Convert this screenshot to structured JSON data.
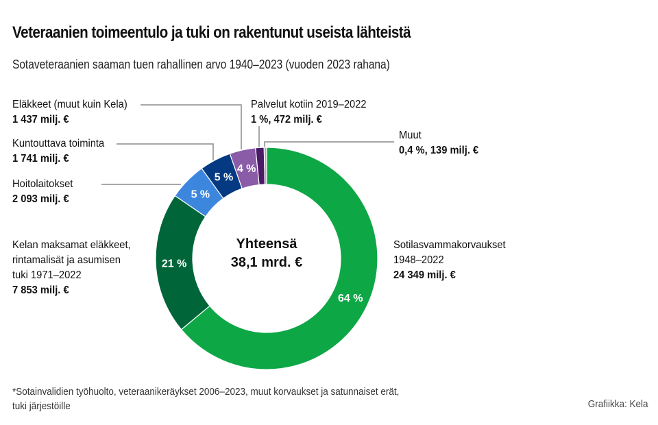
{
  "header": {
    "title": "Veteraanien toimeentulo ja tuki on rakentunut useista lähteistä",
    "subtitle": "Sotaveteraanien saaman tuen rahallinen arvo 1940–2023 (vuoden 2023 rahana)"
  },
  "chart_data": {
    "type": "pie",
    "variant": "donut",
    "title": "Veteraanien toimeentulo ja tuki on rakentunut useista lähteistä",
    "subtitle": "Sotaveteraanien saaman tuen rahallinen arvo 1940–2023 (vuoden 2023 rahana)",
    "unit": "milj. €",
    "center_label": {
      "line1": "Yhteensä",
      "line2": "38,1 mrd. €"
    },
    "start": "top",
    "direction": "clockwise",
    "slices": [
      {
        "key": "sotilasvamma",
        "name_lines": [
          "Sotilasvammakorvaukset",
          "1948–2022"
        ],
        "value": 24349,
        "value_label": "24 349 milj. €",
        "pct_label": "64 %",
        "color": "#0EA746"
      },
      {
        "key": "kela",
        "name_lines": [
          "Kelan maksamat eläkkeet,",
          "rintamalisät ja asumisen",
          "tuki 1971–2022"
        ],
        "value": 7853,
        "value_label": "7 853 milj. €",
        "pct_label": "21 %",
        "color": "#00663A"
      },
      {
        "key": "hoitolaitokset",
        "name_lines": [
          "Hoitolaitokset"
        ],
        "value": 2093,
        "value_label": "2 093 milj. €",
        "pct_label": "5 %",
        "color": "#3D86DE"
      },
      {
        "key": "kuntouttava",
        "name_lines": [
          "Kuntouttava toiminta"
        ],
        "value": 1741,
        "value_label": "1 741 milj. €",
        "pct_label": "5 %",
        "color": "#053A82"
      },
      {
        "key": "elakkeet",
        "name_lines": [
          "Eläkkeet (muut kuin Kela)"
        ],
        "value": 1437,
        "value_label": "1 437 milj. €",
        "pct_label": "4 %",
        "color": "#8A5CA8"
      },
      {
        "key": "palvelut",
        "name_lines": [
          "Palvelut kotiin 2019–2022"
        ],
        "value": 472,
        "value_label": "1 %, 472 milj. €",
        "pct_label": "",
        "color": "#4A1A66"
      },
      {
        "key": "muut",
        "name_lines": [
          "Muut"
        ],
        "value": 139,
        "value_label": "0,4 %, 139 milj. €",
        "pct_label": "",
        "color": "#A8A8A8"
      }
    ],
    "leader_line_color": "#8a8a8a",
    "separator_color": "#ffffff"
  },
  "footnote": {
    "lines": [
      "*Sotainvalidien työhuolto, veteraanikeräykset 2006–2023, muut korvaukset ja satunnaiset erät,",
      "tuki järjestöille"
    ]
  },
  "credit": "Grafiikka: Kela"
}
